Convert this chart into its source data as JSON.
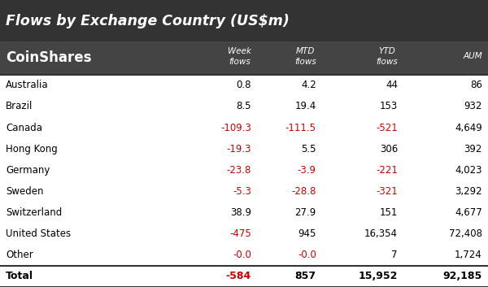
{
  "title": "Flows by Exchange Country (US$m)",
  "title_bg": "#333333",
  "title_color": "#ffffff",
  "logo_text": "CoinShares",
  "header_bg": "#444444",
  "header_color": "#ffffff",
  "col_headers": [
    "",
    "Week\nflows",
    "MTD\nflows",
    "YTD\nflows",
    "AUM"
  ],
  "rows": [
    [
      "Australia",
      "0.8",
      "4.2",
      "44",
      "86"
    ],
    [
      "Brazil",
      "8.5",
      "19.4",
      "153",
      "932"
    ],
    [
      "Canada",
      "-109.3",
      "-111.5",
      "-521",
      "4,649"
    ],
    [
      "Hong Kong",
      "-19.3",
      "5.5",
      "306",
      "392"
    ],
    [
      "Germany",
      "-23.8",
      "-3.9",
      "-221",
      "4,023"
    ],
    [
      "Sweden",
      "-5.3",
      "-28.8",
      "-321",
      "3,292"
    ],
    [
      "Switzerland",
      "38.9",
      "27.9",
      "151",
      "4,677"
    ],
    [
      "United States",
      "-475",
      "945",
      "16,354",
      "72,408"
    ],
    [
      "Other",
      "-0.0",
      "-0.0",
      "7",
      "1,724"
    ]
  ],
  "total_row": [
    "Total",
    "-584",
    "857",
    "15,952",
    "92,185"
  ],
  "negative_color": "#cc0000",
  "positive_color": "#000000",
  "separator_color": "#333333",
  "figsize": [
    6.0,
    3.53
  ],
  "dpi": 100
}
